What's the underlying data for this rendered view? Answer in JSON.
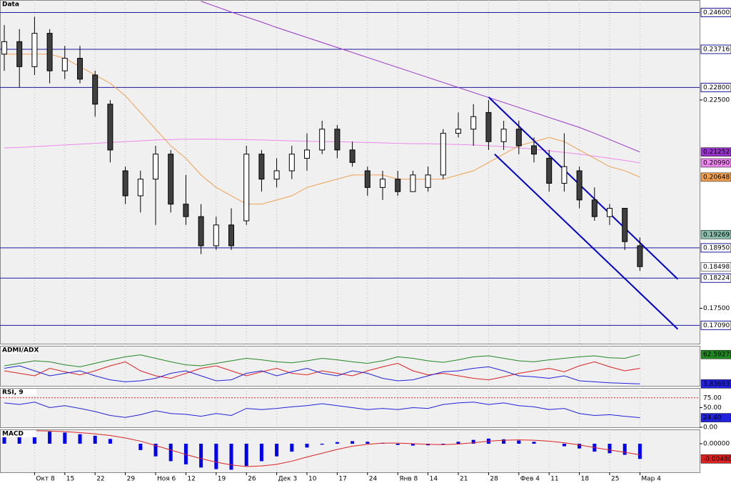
{
  "chart_data": {
    "type": "candlestick",
    "title": "Data",
    "categories": [
      null,
      null,
      "Окт 8",
      null,
      "15",
      null,
      "22",
      null,
      "29",
      null,
      "Ноя 6",
      null,
      "12",
      null,
      "19",
      null,
      "26",
      null,
      "Дек 3",
      null,
      "10",
      null,
      "17",
      null,
      "24",
      null,
      "Янв 8",
      null,
      "14",
      null,
      "21",
      null,
      "28",
      null,
      "Фев 4",
      null,
      "11",
      null,
      "18",
      null,
      "25",
      null,
      "Мар 4"
    ],
    "open": [
      0.236,
      0.239,
      0.233,
      0.241,
      0.232,
      0.235,
      0.231,
      0.224,
      0.208,
      0.202,
      0.206,
      0.212,
      0.2,
      0.197,
      0.19,
      0.195,
      0.196,
      0.212,
      0.206,
      0.208,
      0.211,
      0.213,
      0.218,
      0.213,
      0.208,
      0.204,
      0.206,
      0.203,
      0.204,
      0.207,
      0.217,
      0.218,
      0.222,
      0.215,
      0.218,
      0.214,
      0.211,
      0.205,
      0.208,
      0.201,
      0.197,
      0.199,
      0.19
    ],
    "high": [
      0.243,
      0.242,
      0.245,
      0.242,
      0.238,
      0.238,
      0.232,
      0.225,
      0.209,
      0.208,
      0.214,
      0.213,
      0.207,
      0.2,
      0.197,
      0.199,
      0.214,
      0.213,
      0.211,
      0.214,
      0.217,
      0.22,
      0.219,
      0.215,
      0.209,
      0.208,
      0.208,
      0.208,
      0.209,
      0.218,
      0.222,
      0.224,
      0.225,
      0.22,
      0.22,
      0.216,
      0.213,
      0.217,
      0.209,
      0.204,
      0.2,
      0.199,
      0.192
    ],
    "low": [
      0.232,
      0.228,
      0.231,
      0.229,
      0.23,
      0.229,
      0.221,
      0.21,
      0.2,
      0.198,
      0.195,
      0.198,
      0.195,
      0.188,
      0.189,
      0.189,
      0.195,
      0.203,
      0.204,
      0.206,
      0.208,
      0.212,
      0.211,
      0.209,
      0.202,
      0.201,
      0.202,
      0.203,
      0.203,
      0.206,
      0.216,
      0.214,
      0.213,
      0.213,
      0.212,
      0.21,
      0.203,
      0.203,
      0.199,
      0.196,
      0.195,
      0.189,
      0.184
    ],
    "close": [
      0.239,
      0.233,
      0.241,
      0.232,
      0.235,
      0.23,
      0.224,
      0.213,
      0.202,
      0.206,
      0.212,
      0.2,
      0.197,
      0.19,
      0.195,
      0.19,
      0.212,
      0.206,
      0.208,
      0.212,
      0.213,
      0.218,
      0.213,
      0.21,
      0.204,
      0.206,
      0.203,
      0.207,
      0.207,
      0.217,
      0.218,
      0.221,
      0.215,
      0.218,
      0.214,
      0.212,
      0.205,
      0.209,
      0.201,
      0.197,
      0.199,
      0.191,
      0.185
    ],
    "up_color": "#ffffff",
    "down_color": "#404040",
    "ylim": [
      0.1665,
      0.249
    ],
    "yticks": [
      {
        "value": 0.175,
        "label": "0.17500"
      },
      {
        "value": 0.225,
        "label": "0.22500"
      }
    ],
    "levels": [
      {
        "value": 0.246,
        "label": "0.24600"
      },
      {
        "value": 0.23716,
        "label": "0.23716"
      },
      {
        "value": 0.228,
        "label": "0.22800"
      },
      {
        "value": 0.1895,
        "label": "0.18950"
      },
      {
        "value": 0.18224,
        "label": "0.18224"
      },
      {
        "value": 0.1709,
        "label": "0.17090"
      }
    ],
    "level_color": "#1a1aa0",
    "badges": [
      {
        "value": 0.21252,
        "label": "0.21252",
        "color": "#9933cc"
      },
      {
        "value": 0.2099,
        "label": "0.20990",
        "color": "#ee88ee"
      },
      {
        "value": 0.20648,
        "label": "0.20648",
        "color": "#f0a050"
      },
      {
        "value": 0.19269,
        "label": "0.19269",
        "color": "#88bbaa"
      },
      {
        "value": 0.18498,
        "label": "0.18498",
        "color": "#ffffff"
      }
    ],
    "overlays": [
      {
        "color": "#ee88ee",
        "values": [
          0.2135,
          0.2136,
          0.2138,
          0.214,
          0.2142,
          0.2144,
          0.2146,
          0.2148,
          0.215,
          0.2152,
          0.2154,
          0.2155,
          0.2156,
          0.2156,
          0.2156,
          0.2155,
          0.2155,
          0.2154,
          0.2153,
          0.2152,
          0.2151,
          0.215,
          0.215,
          0.2149,
          0.2148,
          0.2147,
          0.2146,
          0.2145,
          0.2145,
          0.2144,
          0.2143,
          0.2142,
          0.214,
          0.2138,
          0.2135,
          0.2132,
          0.2128,
          0.2124,
          0.212,
          0.2115,
          0.211,
          0.2105,
          0.2099
        ]
      },
      {
        "color": "#9933cc",
        "values": [
          null,
          null,
          null,
          null,
          null,
          null,
          null,
          null,
          null,
          null,
          null,
          null,
          null,
          0.2487,
          0.2474,
          0.2461,
          0.2449,
          0.2437,
          0.2424,
          0.2412,
          0.24,
          0.2388,
          0.2376,
          0.2364,
          0.2352,
          0.234,
          0.2328,
          0.2316,
          0.2304,
          0.2292,
          0.228,
          0.2268,
          0.2256,
          0.2244,
          0.2232,
          0.222,
          0.2208,
          0.2196,
          0.2184,
          0.217,
          0.2155,
          0.214,
          0.2125
        ]
      },
      {
        "color": "#f0a050",
        "values": [
          0.236,
          0.236,
          0.236,
          0.236,
          0.235,
          0.233,
          0.231,
          0.229,
          0.226,
          0.222,
          0.218,
          0.214,
          0.211,
          0.207,
          0.204,
          0.202,
          0.2,
          0.2,
          0.201,
          0.202,
          0.204,
          0.205,
          0.206,
          0.207,
          0.207,
          0.207,
          0.206,
          0.206,
          0.206,
          0.206,
          0.207,
          0.208,
          0.21,
          0.212,
          0.214,
          0.215,
          0.216,
          0.215,
          0.213,
          0.211,
          0.209,
          0.208,
          0.2065
        ]
      }
    ],
    "channel": {
      "color": "#0000cc",
      "lines": [
        {
          "x": [
            32,
            44.5
          ],
          "y": [
            0.2257,
            0.182
          ]
        },
        {
          "x": [
            32.4,
            44.5
          ],
          "y": [
            0.212,
            0.17
          ]
        }
      ]
    },
    "panels": [
      {
        "title": "ADMI/ADX",
        "ylim": [
          0,
          80
        ],
        "series": [
          {
            "color": "#228822",
            "values": [
              40,
              45,
              50,
              48,
              42,
              38,
              45,
              52,
              58,
              62,
              55,
              48,
              42,
              40,
              45,
              50,
              55,
              52,
              48,
              46,
              50,
              55,
              52,
              48,
              45,
              50,
              58,
              55,
              50,
              47,
              52,
              58,
              60,
              55,
              50,
              48,
              52,
              55,
              58,
              60,
              56,
              55,
              62.59
            ]
          },
          {
            "color": "#dd2222",
            "values": [
              30,
              25,
              20,
              35,
              28,
              22,
              30,
              40,
              48,
              30,
              20,
              15,
              25,
              35,
              40,
              30,
              20,
              28,
              35,
              25,
              22,
              30,
              25,
              20,
              30,
              38,
              45,
              30,
              22,
              25,
              20,
              15,
              12,
              18,
              25,
              30,
              35,
              28,
              40,
              48,
              38,
              30,
              35
            ]
          },
          {
            "color": "#2222dd",
            "values": [
              35,
              40,
              30,
              20,
              25,
              30,
              20,
              12,
              8,
              10,
              15,
              25,
              30,
              20,
              10,
              12,
              25,
              30,
              20,
              28,
              35,
              25,
              20,
              30,
              25,
              15,
              10,
              12,
              20,
              28,
              30,
              35,
              38,
              30,
              20,
              18,
              15,
              20,
              10,
              8,
              6,
              5,
              3.84
            ]
          }
        ],
        "badges": [
          {
            "value": 62.59278,
            "label": "62.59278",
            "color": "#228822"
          },
          {
            "value": 3.83693,
            "label": "3.83693",
            "color": "#2222dd"
          }
        ]
      },
      {
        "title": "RSI, 9",
        "ylim": [
          0,
          100
        ],
        "yticks": [
          {
            "value": 0,
            "label": "0.00"
          },
          {
            "value": 50,
            "label": "50.00"
          }
        ],
        "levels": [
          {
            "value": 75,
            "label": "75.00",
            "color": "#dd2222"
          }
        ],
        "series": [
          {
            "color": "#2222dd",
            "values": [
              62,
              58,
              64,
              50,
              55,
              48,
              40,
              30,
              25,
              32,
              42,
              35,
              33,
              28,
              35,
              30,
              48,
              45,
              48,
              52,
              55,
              60,
              55,
              50,
              45,
              48,
              45,
              50,
              48,
              58,
              62,
              64,
              58,
              62,
              55,
              52,
              45,
              48,
              35,
              30,
              32,
              28,
              24.4
            ]
          }
        ],
        "badges": [
          {
            "value": 24.4,
            "label": "24.40",
            "color": "#2222dd"
          }
        ]
      },
      {
        "title": "MACD",
        "ylim": [
          -0.009,
          0.0045
        ],
        "yticks": [
          {
            "value": 0,
            "label": "0.00000"
          }
        ],
        "series": [
          {
            "style": "bar",
            "color": "#0000ee",
            "values": [
              0.004,
              0.0042,
              0.004,
              0.0038,
              0.0035,
              0.003,
              0.0025,
              0.0015,
              0.0,
              -0.002,
              -0.004,
              -0.0055,
              -0.0065,
              -0.0075,
              -0.008,
              -0.0082,
              -0.007,
              -0.0055,
              -0.004,
              -0.0025,
              -0.0012,
              -0.0003,
              0.0005,
              0.0008,
              0.0006,
              0.0002,
              -0.0004,
              -0.0006,
              -0.0005,
              -0.0002,
              0.0006,
              0.0012,
              0.0016,
              0.0014,
              0.001,
              0.0006,
              0.0,
              -0.0008,
              -0.0015,
              -0.0025,
              -0.003,
              -0.0035,
              -0.0048
            ]
          },
          {
            "color": "#dd2222",
            "values": [
              0.004,
              0.0041,
              0.0041,
              0.004,
              0.0038,
              0.0035,
              0.0031,
              0.0026,
              0.0018,
              0.0008,
              -0.0006,
              -0.002,
              -0.0034,
              -0.0047,
              -0.0058,
              -0.0067,
              -0.0072,
              -0.007,
              -0.0065,
              -0.0055,
              -0.0042,
              -0.003,
              -0.0018,
              -0.0008,
              -0.0002,
              0.0002,
              0.0002,
              0.0,
              -0.0002,
              -0.0003,
              -0.0001,
              0.0003,
              0.0008,
              0.0011,
              0.0012,
              0.0011,
              0.0008,
              0.0003,
              -0.0004,
              -0.0012,
              -0.002,
              -0.0027,
              -0.0035
            ]
          }
        ],
        "badges": [
          {
            "value": -0.0048,
            "label": "-0.00480",
            "color": "#dd2222"
          }
        ]
      }
    ]
  }
}
